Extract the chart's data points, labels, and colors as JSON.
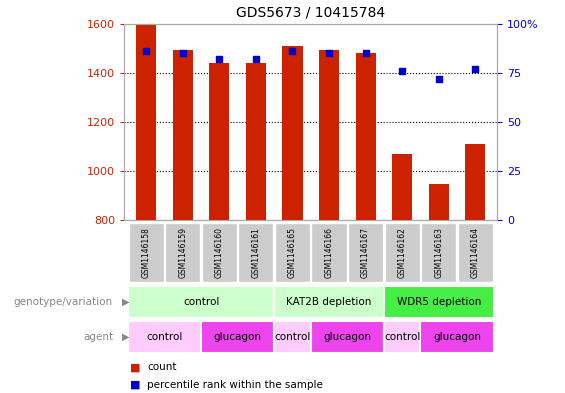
{
  "title": "GDS5673 / 10415784",
  "samples": [
    "GSM1146158",
    "GSM1146159",
    "GSM1146160",
    "GSM1146161",
    "GSM1146165",
    "GSM1146166",
    "GSM1146167",
    "GSM1146162",
    "GSM1146163",
    "GSM1146164"
  ],
  "counts": [
    1597,
    1493,
    1438,
    1438,
    1510,
    1492,
    1482,
    1070,
    945,
    1110
  ],
  "percentiles": [
    86,
    85,
    82,
    82,
    86,
    85,
    85,
    76,
    72,
    77
  ],
  "ylim_left": [
    800,
    1600
  ],
  "ylim_right": [
    0,
    100
  ],
  "yticks_left": [
    800,
    1000,
    1200,
    1400,
    1600
  ],
  "yticks_right": [
    0,
    25,
    50,
    75,
    100
  ],
  "bar_color": "#cc2200",
  "dot_color": "#0000cc",
  "genotype_groups": [
    {
      "label": "control",
      "start": 0,
      "end": 4,
      "color": "#ccffcc"
    },
    {
      "label": "KAT2B depletion",
      "start": 4,
      "end": 7,
      "color": "#ccffcc"
    },
    {
      "label": "WDR5 depletion",
      "start": 7,
      "end": 10,
      "color": "#44ee44"
    }
  ],
  "agent_groups": [
    {
      "label": "control",
      "start": 0,
      "end": 2,
      "color": "#ffccff"
    },
    {
      "label": "glucagon",
      "start": 2,
      "end": 4,
      "color": "#ee44ee"
    },
    {
      "label": "control",
      "start": 4,
      "end": 5,
      "color": "#ffccff"
    },
    {
      "label": "glucagon",
      "start": 5,
      "end": 7,
      "color": "#ee44ee"
    },
    {
      "label": "control",
      "start": 7,
      "end": 8,
      "color": "#ffccff"
    },
    {
      "label": "glucagon",
      "start": 8,
      "end": 10,
      "color": "#ee44ee"
    }
  ],
  "legend_items": [
    {
      "label": "count",
      "color": "#cc2200"
    },
    {
      "label": "percentile rank within the sample",
      "color": "#0000cc"
    }
  ],
  "genotype_label": "genotype/variation",
  "agent_label": "agent",
  "bar_width": 0.55
}
